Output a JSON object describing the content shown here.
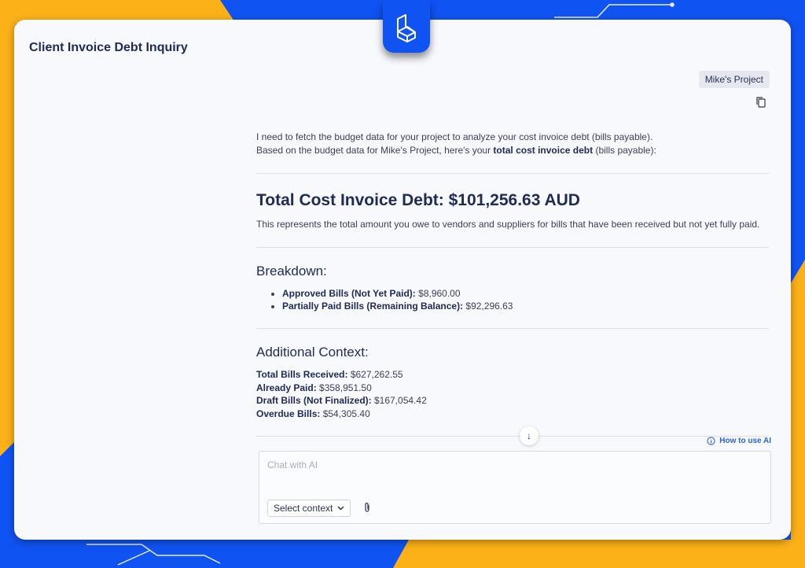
{
  "app": {
    "title": "Client Invoice Debt Inquiry",
    "logo_icon": "building-b-logo"
  },
  "colors": {
    "brand_blue": "#1053f3",
    "accent_yellow": "#fbb117",
    "link": "#2763e0"
  },
  "message": {
    "project_badge": "Mike's Project",
    "intro_line1": "I need to fetch the budget data for your project to analyze your cost invoice debt (bills payable).",
    "intro_line2_pre": "Based on the budget data for Mike's Project, here's your ",
    "intro_line2_bold": "total cost invoice debt",
    "intro_line2_post": " (bills payable):",
    "heading": "Total Cost Invoice Debt: $101,256.63 AUD",
    "description": "This represents the total amount you owe to vendors and suppliers for bills that have been received but not yet fully paid.",
    "breakdown_title": "Breakdown:",
    "breakdown": [
      {
        "label": "Approved Bills (Not Yet Paid):",
        "value": " $8,960.00"
      },
      {
        "label": "Partially Paid Bills (Remaining Balance):",
        "value": " $92,296.63"
      }
    ],
    "context_title": "Additional Context:",
    "context": [
      {
        "label": "Total Bills Received:",
        "value": " $627,262.55"
      },
      {
        "label": "Already Paid:",
        "value": " $358,951.50"
      },
      {
        "label": "Draft Bills (Not Finalized):",
        "value": " $167,054.42"
      },
      {
        "label": "Overdue Bills:",
        "value": " $54,305.40"
      }
    ]
  },
  "chat": {
    "how_to": "How to use AI",
    "placeholder": "Chat with AI",
    "select_context": "Select context"
  }
}
